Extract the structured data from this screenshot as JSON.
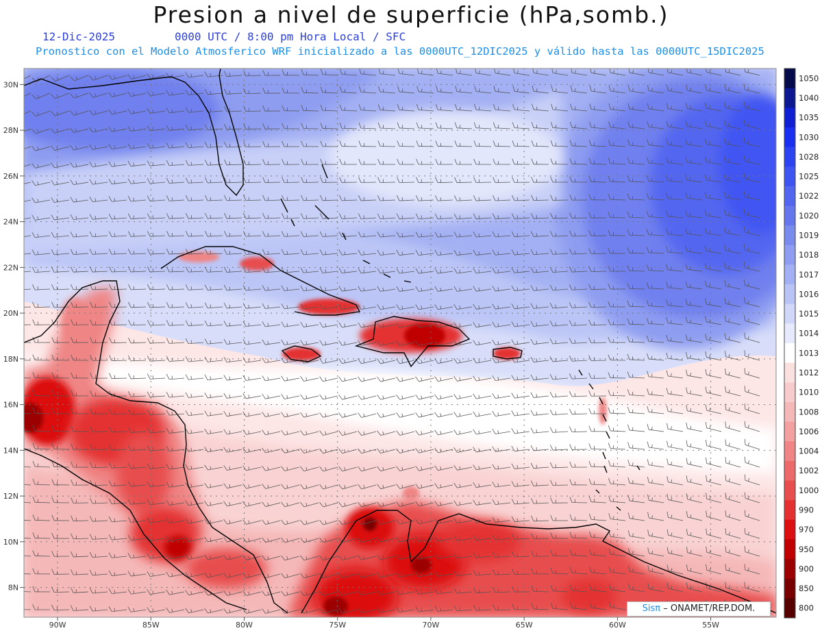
{
  "header": {
    "title": "Presion a nivel de superficie (hPa,somb.)",
    "date": "12-Dic-2025",
    "time_line": "0000 UTC / 8:00 pm Hora Local / SFC",
    "forecast_line": "Pronostico con el Modelo Atmosferico WRF inicializado a las 0000UTC_12DIC2025 y válido hasta las  0000UTC_15DIC2025"
  },
  "axes": {
    "lat_labels": [
      "30N",
      "28N",
      "26N",
      "24N",
      "22N",
      "20N",
      "18N",
      "16N",
      "14N",
      "12N",
      "10N",
      "8N"
    ],
    "lat_values": [
      30,
      28,
      26,
      24,
      22,
      20,
      18,
      16,
      14,
      12,
      10,
      8
    ],
    "lon_labels": [
      "90W",
      "85W",
      "80W",
      "75W",
      "70W",
      "65W",
      "60W",
      "55W"
    ],
    "lon_values": [
      -90,
      -85,
      -80,
      -75,
      -70,
      -65,
      -60,
      -55
    ],
    "lat_range": [
      6.7,
      30.7
    ],
    "lon_range": [
      -91.8,
      -51.5
    ],
    "grid": "dotted"
  },
  "colorbar": {
    "labels": [
      "1050",
      "1040",
      "1035",
      "1030",
      "1028",
      "1025",
      "1022",
      "1020",
      "1019",
      "1018",
      "1017",
      "1016",
      "1015",
      "1014",
      "1013",
      "1012",
      "1010",
      "1008",
      "1006",
      "1004",
      "1002",
      "1000",
      "990",
      "970",
      "950",
      "900",
      "850",
      "800"
    ],
    "colors": [
      "#050a4a",
      "#0b1890",
      "#0f1fd2",
      "#1a30f0",
      "#2c43f2",
      "#3f55f2",
      "#5266f0",
      "#6677ee",
      "#7a8bee",
      "#8e9df0",
      "#a3b0f3",
      "#b9c3f6",
      "#d0d7f9",
      "#e6eafc",
      "#ffffff",
      "#fbe0e0",
      "#f8cccc",
      "#f5b8b8",
      "#f2a0a0",
      "#ef8585",
      "#ec6a6a",
      "#e84e4e",
      "#e43030",
      "#dc1010",
      "#c00000",
      "#9c0000",
      "#780000",
      "#560000"
    ]
  },
  "credit": {
    "sis": "Sisπ",
    "org": "ONAMET/REP.DOM."
  }
}
